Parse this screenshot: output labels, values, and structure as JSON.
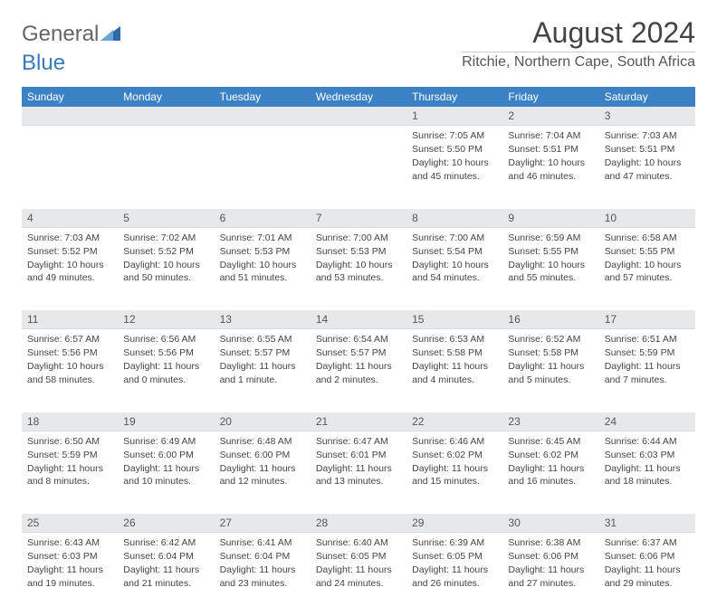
{
  "brand": {
    "part1": "General",
    "part2": "Blue"
  },
  "title": "August 2024",
  "location": "Ritchie, Northern Cape, South Africa",
  "colors": {
    "header_bg": "#3b82c4",
    "header_text": "#ffffff",
    "daynum_bg": "#e6e9ec",
    "text": "#444444",
    "logo_gray": "#666666",
    "logo_blue": "#3a7ab8"
  },
  "weekdays": [
    "Sunday",
    "Monday",
    "Tuesday",
    "Wednesday",
    "Thursday",
    "Friday",
    "Saturday"
  ],
  "weeks": [
    [
      null,
      null,
      null,
      null,
      {
        "n": "1",
        "sr": "7:05 AM",
        "ss": "5:50 PM",
        "dl": "10 hours and 45 minutes."
      },
      {
        "n": "2",
        "sr": "7:04 AM",
        "ss": "5:51 PM",
        "dl": "10 hours and 46 minutes."
      },
      {
        "n": "3",
        "sr": "7:03 AM",
        "ss": "5:51 PM",
        "dl": "10 hours and 47 minutes."
      }
    ],
    [
      {
        "n": "4",
        "sr": "7:03 AM",
        "ss": "5:52 PM",
        "dl": "10 hours and 49 minutes."
      },
      {
        "n": "5",
        "sr": "7:02 AM",
        "ss": "5:52 PM",
        "dl": "10 hours and 50 minutes."
      },
      {
        "n": "6",
        "sr": "7:01 AM",
        "ss": "5:53 PM",
        "dl": "10 hours and 51 minutes."
      },
      {
        "n": "7",
        "sr": "7:00 AM",
        "ss": "5:53 PM",
        "dl": "10 hours and 53 minutes."
      },
      {
        "n": "8",
        "sr": "7:00 AM",
        "ss": "5:54 PM",
        "dl": "10 hours and 54 minutes."
      },
      {
        "n": "9",
        "sr": "6:59 AM",
        "ss": "5:55 PM",
        "dl": "10 hours and 55 minutes."
      },
      {
        "n": "10",
        "sr": "6:58 AM",
        "ss": "5:55 PM",
        "dl": "10 hours and 57 minutes."
      }
    ],
    [
      {
        "n": "11",
        "sr": "6:57 AM",
        "ss": "5:56 PM",
        "dl": "10 hours and 58 minutes."
      },
      {
        "n": "12",
        "sr": "6:56 AM",
        "ss": "5:56 PM",
        "dl": "11 hours and 0 minutes."
      },
      {
        "n": "13",
        "sr": "6:55 AM",
        "ss": "5:57 PM",
        "dl": "11 hours and 1 minute."
      },
      {
        "n": "14",
        "sr": "6:54 AM",
        "ss": "5:57 PM",
        "dl": "11 hours and 2 minutes."
      },
      {
        "n": "15",
        "sr": "6:53 AM",
        "ss": "5:58 PM",
        "dl": "11 hours and 4 minutes."
      },
      {
        "n": "16",
        "sr": "6:52 AM",
        "ss": "5:58 PM",
        "dl": "11 hours and 5 minutes."
      },
      {
        "n": "17",
        "sr": "6:51 AM",
        "ss": "5:59 PM",
        "dl": "11 hours and 7 minutes."
      }
    ],
    [
      {
        "n": "18",
        "sr": "6:50 AM",
        "ss": "5:59 PM",
        "dl": "11 hours and 8 minutes."
      },
      {
        "n": "19",
        "sr": "6:49 AM",
        "ss": "6:00 PM",
        "dl": "11 hours and 10 minutes."
      },
      {
        "n": "20",
        "sr": "6:48 AM",
        "ss": "6:00 PM",
        "dl": "11 hours and 12 minutes."
      },
      {
        "n": "21",
        "sr": "6:47 AM",
        "ss": "6:01 PM",
        "dl": "11 hours and 13 minutes."
      },
      {
        "n": "22",
        "sr": "6:46 AM",
        "ss": "6:02 PM",
        "dl": "11 hours and 15 minutes."
      },
      {
        "n": "23",
        "sr": "6:45 AM",
        "ss": "6:02 PM",
        "dl": "11 hours and 16 minutes."
      },
      {
        "n": "24",
        "sr": "6:44 AM",
        "ss": "6:03 PM",
        "dl": "11 hours and 18 minutes."
      }
    ],
    [
      {
        "n": "25",
        "sr": "6:43 AM",
        "ss": "6:03 PM",
        "dl": "11 hours and 19 minutes."
      },
      {
        "n": "26",
        "sr": "6:42 AM",
        "ss": "6:04 PM",
        "dl": "11 hours and 21 minutes."
      },
      {
        "n": "27",
        "sr": "6:41 AM",
        "ss": "6:04 PM",
        "dl": "11 hours and 23 minutes."
      },
      {
        "n": "28",
        "sr": "6:40 AM",
        "ss": "6:05 PM",
        "dl": "11 hours and 24 minutes."
      },
      {
        "n": "29",
        "sr": "6:39 AM",
        "ss": "6:05 PM",
        "dl": "11 hours and 26 minutes."
      },
      {
        "n": "30",
        "sr": "6:38 AM",
        "ss": "6:06 PM",
        "dl": "11 hours and 27 minutes."
      },
      {
        "n": "31",
        "sr": "6:37 AM",
        "ss": "6:06 PM",
        "dl": "11 hours and 29 minutes."
      }
    ]
  ],
  "labels": {
    "sunrise": "Sunrise:",
    "sunset": "Sunset:",
    "daylight": "Daylight:"
  }
}
